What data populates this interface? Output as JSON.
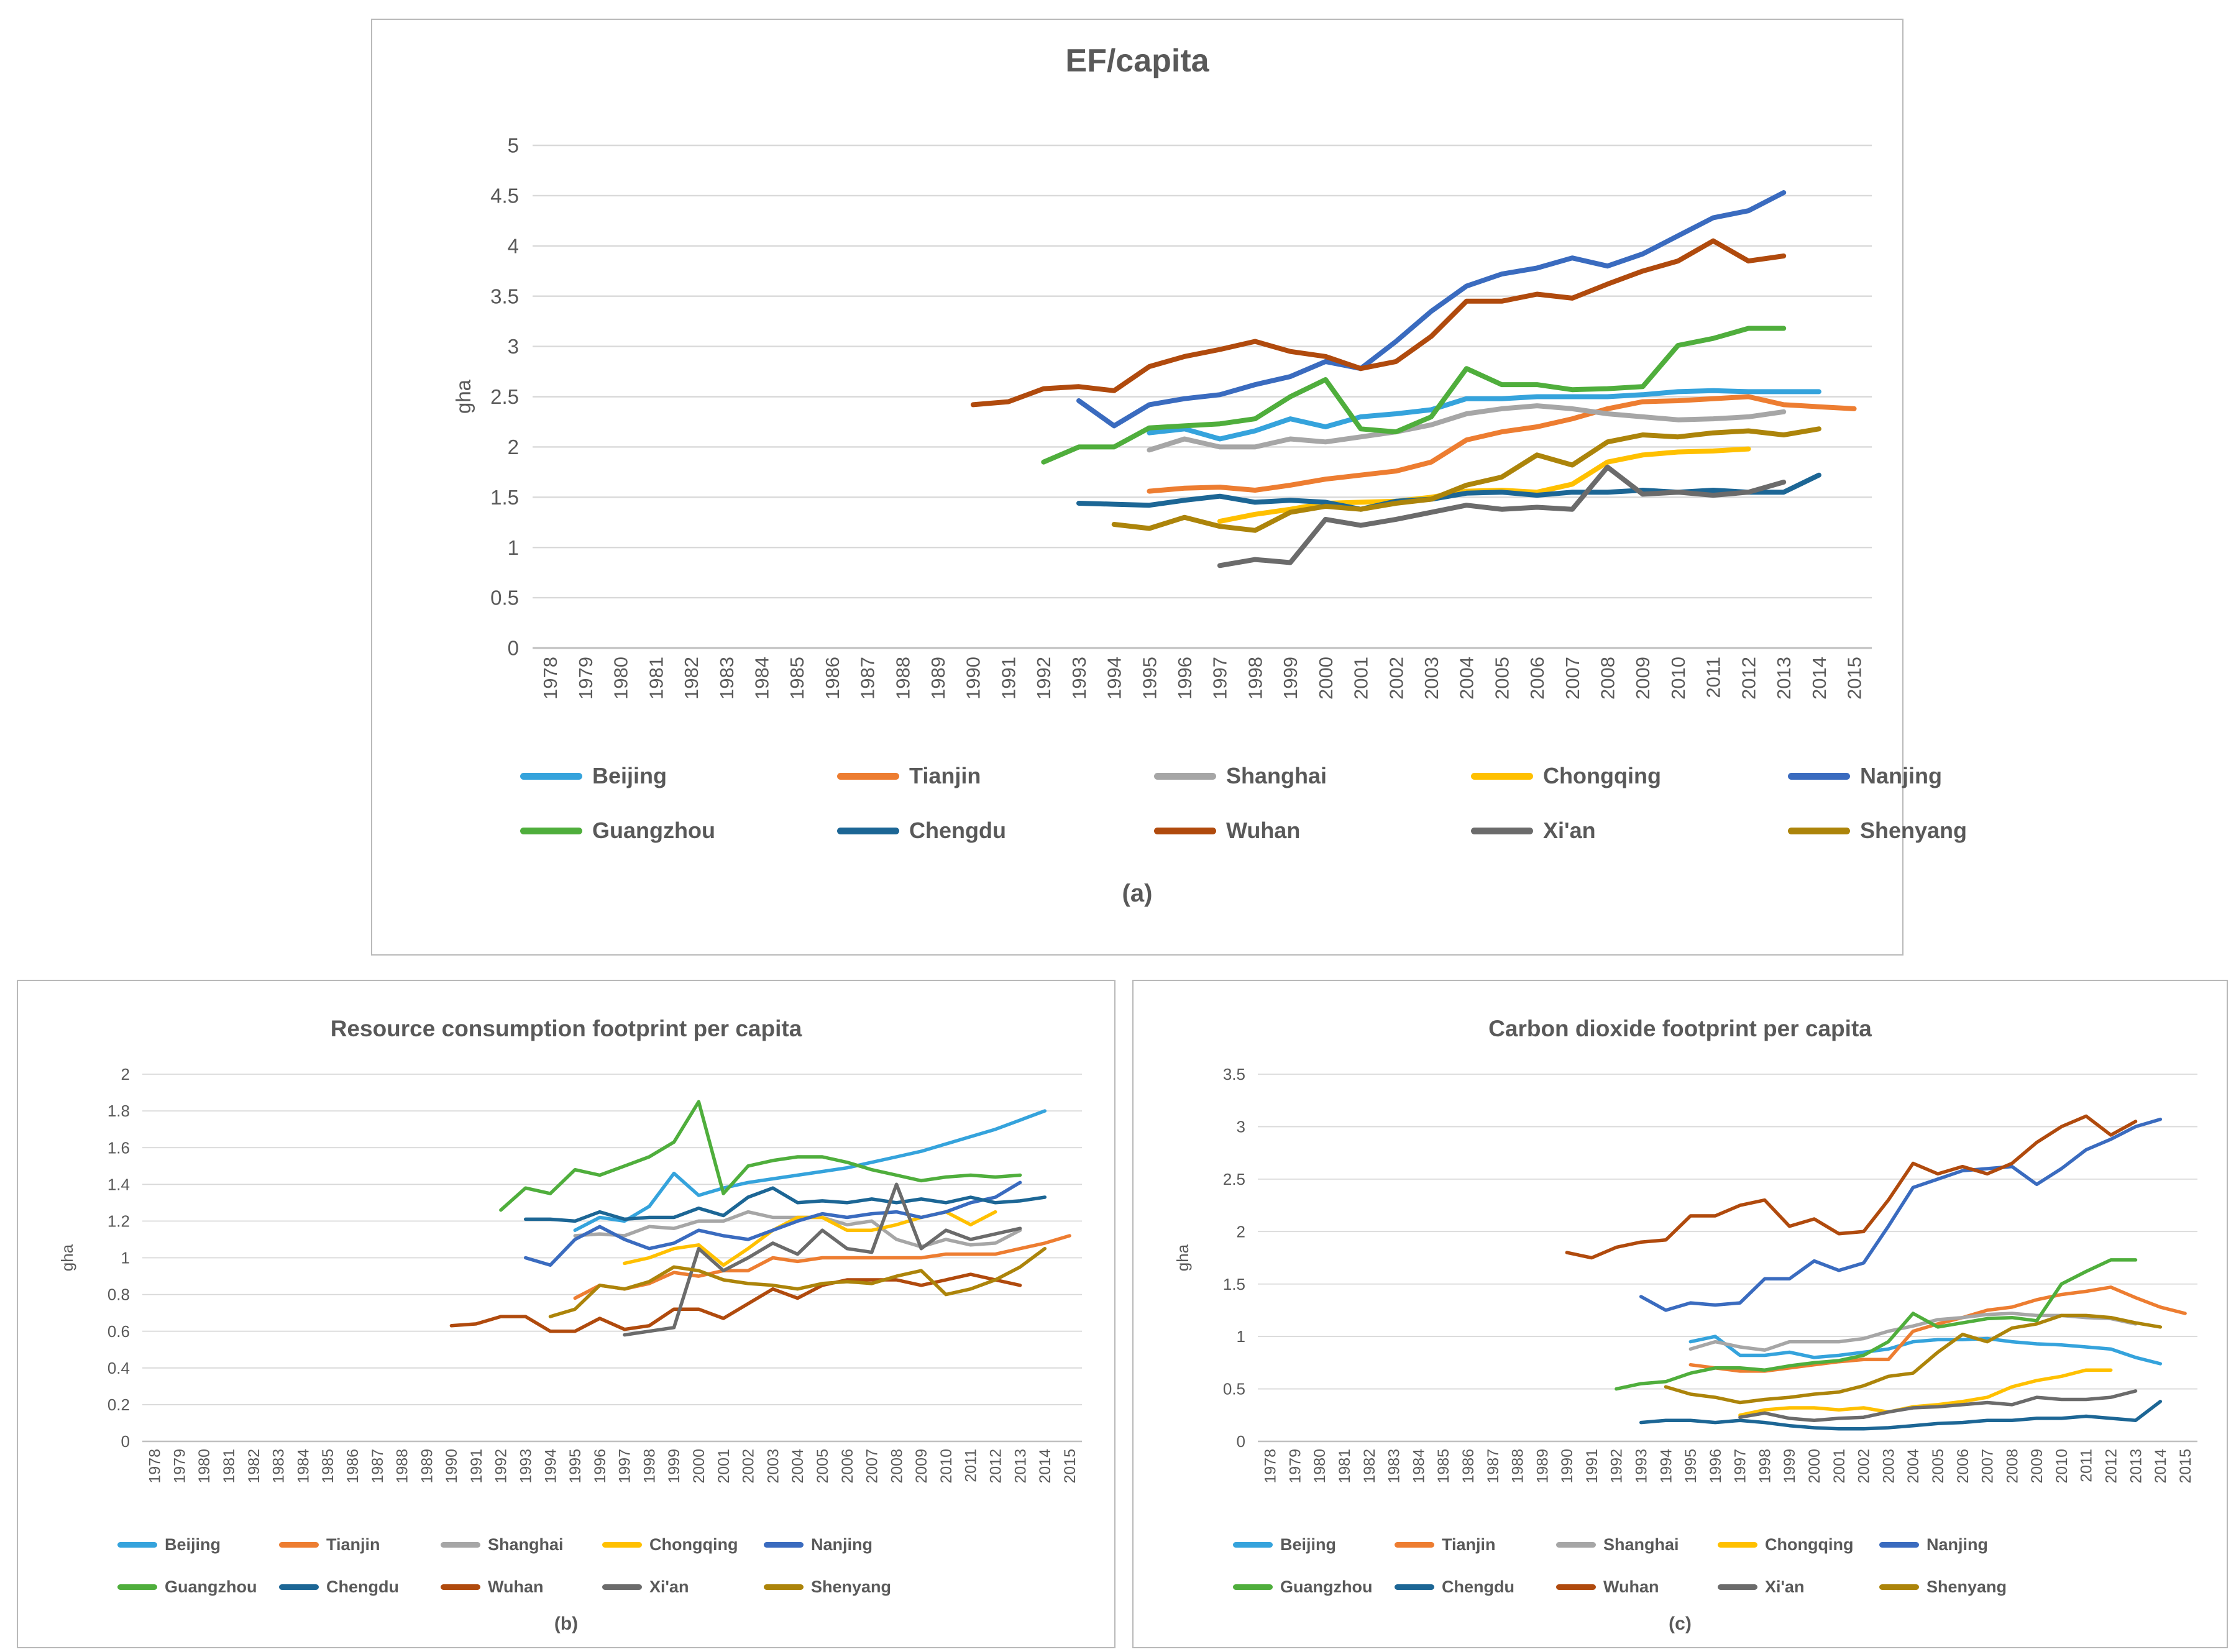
{
  "chart_data": [
    {
      "type": "line",
      "title": "EF/capita",
      "caption": "(a)",
      "xlabel": "",
      "ylabel": "gha",
      "x_categories": [
        1978,
        1979,
        1980,
        1981,
        1982,
        1983,
        1984,
        1985,
        1986,
        1987,
        1988,
        1989,
        1990,
        1991,
        1992,
        1993,
        1994,
        1995,
        1996,
        1997,
        1998,
        1999,
        2000,
        2001,
        2002,
        2003,
        2004,
        2005,
        2006,
        2007,
        2008,
        2009,
        2010,
        2011,
        2012,
        2013,
        2014,
        2015
      ],
      "ylim": [
        0,
        5
      ],
      "ytick_step": 0.5,
      "yticks": [
        0,
        0.5,
        1,
        1.5,
        2,
        2.5,
        3,
        3.5,
        4,
        4.5,
        5
      ],
      "grid": "horizontal",
      "legend_position": "bottom",
      "series": [
        {
          "name": "Beijing",
          "color": "#35A3DC",
          "start_year": 1995,
          "values": [
            2.14,
            2.18,
            2.08,
            2.16,
            2.28,
            2.2,
            2.3,
            2.33,
            2.37,
            2.48,
            2.48,
            2.5,
            2.5,
            2.5,
            2.52,
            2.55,
            2.56,
            2.55,
            2.55,
            2.55
          ]
        },
        {
          "name": "Tianjin",
          "color": "#ED7D31",
          "start_year": 1995,
          "values": [
            1.56,
            1.59,
            1.6,
            1.57,
            1.62,
            1.68,
            1.72,
            1.76,
            1.85,
            2.07,
            2.15,
            2.2,
            2.28,
            2.38,
            2.45,
            2.46,
            2.48,
            2.5,
            2.42,
            2.4,
            2.38
          ]
        },
        {
          "name": "Shanghai",
          "color": "#A6A6A6",
          "start_year": 1995,
          "values": [
            1.97,
            2.08,
            2.0,
            2.0,
            2.08,
            2.05,
            2.1,
            2.15,
            2.22,
            2.33,
            2.38,
            2.41,
            2.38,
            2.33,
            2.3,
            2.27,
            2.28,
            2.3,
            2.35
          ]
        },
        {
          "name": "Chongqing",
          "color": "#FFC000",
          "start_year": 1997,
          "values": [
            1.26,
            1.33,
            1.38,
            1.44,
            1.45,
            1.46,
            1.5,
            1.56,
            1.57,
            1.55,
            1.63,
            1.85,
            1.92,
            1.95,
            1.96,
            1.98
          ]
        },
        {
          "name": "Nanjing",
          "color": "#3A6BBF",
          "start_year": 1993,
          "values": [
            2.46,
            2.21,
            2.42,
            2.48,
            2.52,
            2.62,
            2.7,
            2.85,
            2.78,
            3.05,
            3.35,
            3.6,
            3.72,
            3.78,
            3.88,
            3.8,
            3.92,
            4.1,
            4.28,
            4.35,
            4.53
          ]
        },
        {
          "name": "Guangzhou",
          "color": "#4FAE3C",
          "start_year": 1992,
          "values": [
            1.85,
            2.0,
            2.0,
            2.19,
            2.21,
            2.23,
            2.28,
            2.5,
            2.67,
            2.18,
            2.15,
            2.3,
            2.78,
            2.62,
            2.62,
            2.57,
            2.58,
            2.6,
            3.01,
            3.08,
            3.18,
            3.18
          ]
        },
        {
          "name": "Chengdu",
          "color": "#1C6695",
          "start_year": 1993,
          "values": [
            1.44,
            1.43,
            1.42,
            1.47,
            1.51,
            1.45,
            1.47,
            1.45,
            1.38,
            1.46,
            1.48,
            1.54,
            1.55,
            1.52,
            1.55,
            1.55,
            1.57,
            1.55,
            1.57,
            1.55,
            1.55,
            1.72
          ]
        },
        {
          "name": "Wuhan",
          "color": "#B04A0D",
          "start_year": 1990,
          "values": [
            2.42,
            2.45,
            2.58,
            2.6,
            2.56,
            2.8,
            2.9,
            2.97,
            3.05,
            2.95,
            2.9,
            2.78,
            2.85,
            3.1,
            3.45,
            3.45,
            3.52,
            3.48,
            3.62,
            3.75,
            3.85,
            4.05,
            3.85,
            3.9
          ]
        },
        {
          "name": "Xi'an",
          "color": "#6B6B6B",
          "start_year": 1997,
          "values": [
            0.82,
            0.88,
            0.85,
            1.28,
            1.22,
            1.28,
            1.35,
            1.42,
            1.38,
            1.4,
            1.38,
            1.8,
            1.53,
            1.55,
            1.52,
            1.55,
            1.65
          ]
        },
        {
          "name": "Shenyang",
          "color": "#AC840A",
          "start_year": 1994,
          "values": [
            1.23,
            1.19,
            1.3,
            1.21,
            1.17,
            1.35,
            1.41,
            1.38,
            1.44,
            1.48,
            1.62,
            1.7,
            1.92,
            1.82,
            2.05,
            2.12,
            2.1,
            2.14,
            2.16,
            2.12,
            2.18
          ]
        }
      ]
    },
    {
      "type": "line",
      "title": "Resource consumption footprint per capita",
      "caption": "(b)",
      "xlabel": "",
      "ylabel": "gha",
      "x_categories": [
        1978,
        1979,
        1980,
        1981,
        1982,
        1983,
        1984,
        1985,
        1986,
        1987,
        1988,
        1989,
        1990,
        1991,
        1992,
        1993,
        1994,
        1995,
        1996,
        1997,
        1998,
        1999,
        2000,
        2001,
        2002,
        2003,
        2004,
        2005,
        2006,
        2007,
        2008,
        2009,
        2010,
        2011,
        2012,
        2013,
        2014,
        2015
      ],
      "ylim": [
        0,
        2
      ],
      "ytick_step": 0.2,
      "yticks": [
        0,
        0.2,
        0.4,
        0.6,
        0.8,
        1,
        1.2,
        1.4,
        1.6,
        1.8,
        2
      ],
      "grid": "horizontal",
      "legend_position": "bottom",
      "series": [
        {
          "name": "Beijing",
          "color": "#35A3DC",
          "start_year": 1995,
          "values": [
            1.15,
            1.22,
            1.2,
            1.28,
            1.46,
            1.34,
            1.38,
            1.41,
            1.43,
            1.45,
            1.47,
            1.49,
            1.52,
            1.55,
            1.58,
            1.62,
            1.66,
            1.7,
            1.75,
            1.8
          ]
        },
        {
          "name": "Tianjin",
          "color": "#ED7D31",
          "start_year": 1995,
          "values": [
            0.78,
            0.85,
            0.83,
            0.86,
            0.92,
            0.9,
            0.93,
            0.93,
            1.0,
            0.98,
            1.0,
            1.0,
            1.0,
            1.0,
            1.0,
            1.02,
            1.02,
            1.02,
            1.05,
            1.08,
            1.12
          ]
        },
        {
          "name": "Shanghai",
          "color": "#A6A6A6",
          "start_year": 1995,
          "values": [
            1.12,
            1.13,
            1.12,
            1.17,
            1.16,
            1.2,
            1.2,
            1.25,
            1.22,
            1.22,
            1.22,
            1.18,
            1.2,
            1.1,
            1.06,
            1.1,
            1.07,
            1.08,
            1.15
          ]
        },
        {
          "name": "Chongqing",
          "color": "#FFC000",
          "start_year": 1997,
          "values": [
            0.97,
            1.0,
            1.05,
            1.07,
            0.96,
            1.05,
            1.15,
            1.22,
            1.22,
            1.15,
            1.15,
            1.18,
            1.22,
            1.25,
            1.18,
            1.25
          ]
        },
        {
          "name": "Nanjing",
          "color": "#3A6BBF",
          "start_year": 1993,
          "values": [
            1.0,
            0.96,
            1.1,
            1.17,
            1.1,
            1.05,
            1.08,
            1.15,
            1.12,
            1.1,
            1.15,
            1.2,
            1.24,
            1.22,
            1.24,
            1.25,
            1.22,
            1.25,
            1.3,
            1.33,
            1.41
          ]
        },
        {
          "name": "Guangzhou",
          "color": "#4FAE3C",
          "start_year": 1992,
          "values": [
            1.26,
            1.38,
            1.35,
            1.48,
            1.45,
            1.5,
            1.55,
            1.63,
            1.85,
            1.35,
            1.5,
            1.53,
            1.55,
            1.55,
            1.52,
            1.48,
            1.45,
            1.42,
            1.44,
            1.45,
            1.44,
            1.45
          ]
        },
        {
          "name": "Chengdu",
          "color": "#1C6695",
          "start_year": 1993,
          "values": [
            1.21,
            1.21,
            1.2,
            1.25,
            1.21,
            1.22,
            1.22,
            1.27,
            1.23,
            1.33,
            1.38,
            1.3,
            1.31,
            1.3,
            1.32,
            1.3,
            1.32,
            1.3,
            1.33,
            1.3,
            1.31,
            1.33
          ]
        },
        {
          "name": "Wuhan",
          "color": "#B04A0D",
          "start_year": 1990,
          "values": [
            0.63,
            0.64,
            0.68,
            0.68,
            0.6,
            0.6,
            0.67,
            0.61,
            0.63,
            0.72,
            0.72,
            0.67,
            0.75,
            0.83,
            0.78,
            0.85,
            0.88,
            0.88,
            0.88,
            0.85,
            0.88,
            0.91,
            0.88,
            0.85
          ]
        },
        {
          "name": "Xi'an",
          "color": "#6B6B6B",
          "start_year": 1997,
          "values": [
            0.58,
            0.6,
            0.62,
            1.05,
            0.93,
            1.0,
            1.08,
            1.02,
            1.15,
            1.05,
            1.03,
            1.4,
            1.05,
            1.15,
            1.1,
            1.13,
            1.16
          ]
        },
        {
          "name": "Shenyang",
          "color": "#AC840A",
          "start_year": 1994,
          "values": [
            0.68,
            0.72,
            0.85,
            0.83,
            0.87,
            0.95,
            0.93,
            0.88,
            0.86,
            0.85,
            0.83,
            0.86,
            0.87,
            0.86,
            0.9,
            0.93,
            0.8,
            0.83,
            0.88,
            0.95,
            1.05
          ]
        }
      ]
    },
    {
      "type": "line",
      "title": "Carbon dioxide footprint per capita",
      "caption": "(c)",
      "xlabel": "",
      "ylabel": "gha",
      "x_categories": [
        1978,
        1979,
        1980,
        1981,
        1982,
        1983,
        1984,
        1985,
        1986,
        1987,
        1988,
        1989,
        1990,
        1991,
        1992,
        1993,
        1994,
        1995,
        1996,
        1997,
        1998,
        1999,
        2000,
        2001,
        2002,
        2003,
        2004,
        2005,
        2006,
        2007,
        2008,
        2009,
        2010,
        2011,
        2012,
        2013,
        2014,
        2015
      ],
      "ylim": [
        0,
        3.5
      ],
      "ytick_step": 0.5,
      "yticks": [
        0,
        0.5,
        1,
        1.5,
        2,
        2.5,
        3,
        3.5
      ],
      "grid": "horizontal",
      "legend_position": "bottom",
      "series": [
        {
          "name": "Beijing",
          "color": "#35A3DC",
          "start_year": 1995,
          "values": [
            0.95,
            1.0,
            0.82,
            0.82,
            0.85,
            0.8,
            0.82,
            0.85,
            0.88,
            0.95,
            0.97,
            0.97,
            0.98,
            0.95,
            0.93,
            0.92,
            0.9,
            0.88,
            0.8,
            0.74
          ]
        },
        {
          "name": "Tianjin",
          "color": "#ED7D31",
          "start_year": 1995,
          "values": [
            0.73,
            0.7,
            0.67,
            0.67,
            0.7,
            0.73,
            0.76,
            0.78,
            0.78,
            1.05,
            1.12,
            1.18,
            1.25,
            1.28,
            1.35,
            1.4,
            1.43,
            1.47,
            1.37,
            1.28,
            1.22
          ]
        },
        {
          "name": "Shanghai",
          "color": "#A6A6A6",
          "start_year": 1995,
          "values": [
            0.88,
            0.95,
            0.9,
            0.87,
            0.95,
            0.95,
            0.95,
            0.98,
            1.05,
            1.1,
            1.16,
            1.18,
            1.21,
            1.22,
            1.2,
            1.2,
            1.18,
            1.17,
            1.12
          ]
        },
        {
          "name": "Chongqing",
          "color": "#FFC000",
          "start_year": 1997,
          "values": [
            0.25,
            0.3,
            0.32,
            0.32,
            0.3,
            0.32,
            0.28,
            0.33,
            0.35,
            0.38,
            0.42,
            0.52,
            0.58,
            0.62,
            0.68,
            0.68
          ]
        },
        {
          "name": "Nanjing",
          "color": "#3A6BBF",
          "start_year": 1993,
          "values": [
            1.38,
            1.25,
            1.32,
            1.3,
            1.32,
            1.55,
            1.55,
            1.72,
            1.63,
            1.7,
            2.05,
            2.42,
            2.5,
            2.58,
            2.6,
            2.62,
            2.45,
            2.6,
            2.78,
            2.88,
            3.0,
            3.07
          ]
        },
        {
          "name": "Guangzhou",
          "color": "#4FAE3C",
          "start_year": 1992,
          "values": [
            0.5,
            0.55,
            0.57,
            0.65,
            0.7,
            0.7,
            0.68,
            0.72,
            0.75,
            0.77,
            0.82,
            0.95,
            1.22,
            1.09,
            1.13,
            1.17,
            1.18,
            1.15,
            1.5,
            1.62,
            1.73,
            1.73
          ]
        },
        {
          "name": "Chengdu",
          "color": "#1C6695",
          "start_year": 1993,
          "values": [
            0.18,
            0.2,
            0.2,
            0.18,
            0.2,
            0.18,
            0.15,
            0.13,
            0.12,
            0.12,
            0.13,
            0.15,
            0.17,
            0.18,
            0.2,
            0.2,
            0.22,
            0.22,
            0.24,
            0.22,
            0.2,
            0.38
          ]
        },
        {
          "name": "Wuhan",
          "color": "#B04A0D",
          "start_year": 1990,
          "values": [
            1.8,
            1.75,
            1.85,
            1.9,
            1.92,
            2.15,
            2.15,
            2.25,
            2.3,
            2.05,
            2.12,
            1.98,
            2.0,
            2.3,
            2.65,
            2.55,
            2.62,
            2.55,
            2.65,
            2.85,
            3.0,
            3.1,
            2.92,
            3.05
          ]
        },
        {
          "name": "Xi'an",
          "color": "#6B6B6B",
          "start_year": 1997,
          "values": [
            0.23,
            0.27,
            0.22,
            0.2,
            0.22,
            0.23,
            0.28,
            0.32,
            0.33,
            0.35,
            0.37,
            0.35,
            0.42,
            0.4,
            0.4,
            0.42,
            0.48
          ]
        },
        {
          "name": "Shenyang",
          "color": "#AC840A",
          "start_year": 1994,
          "values": [
            0.52,
            0.45,
            0.42,
            0.37,
            0.4,
            0.42,
            0.45,
            0.47,
            0.53,
            0.62,
            0.65,
            0.85,
            1.02,
            0.95,
            1.08,
            1.12,
            1.2,
            1.2,
            1.18,
            1.13,
            1.09
          ]
        }
      ]
    }
  ]
}
